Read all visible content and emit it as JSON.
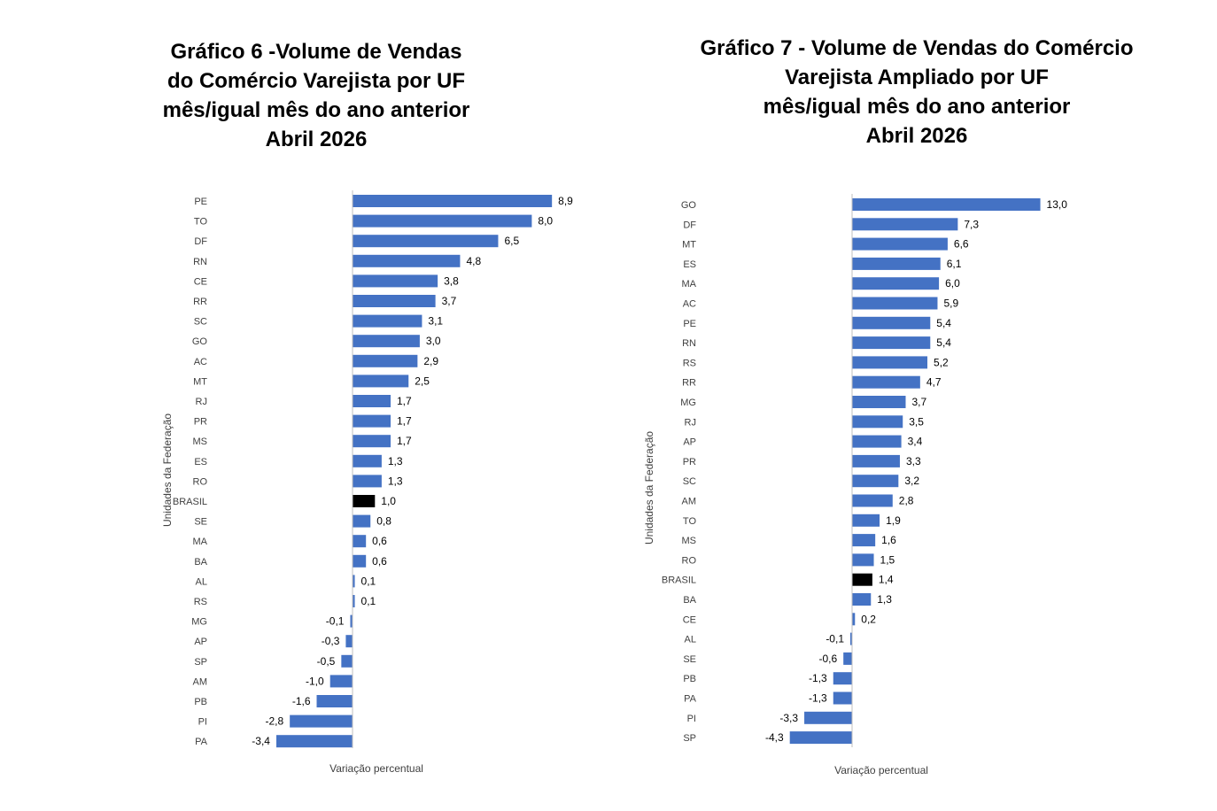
{
  "chart_data": [
    {
      "type": "bar",
      "orientation": "horizontal",
      "title_lines": [
        "Gráfico 6 -Volume de Vendas",
        "do Comércio Varejista por UF",
        "mês/igual mês do ano anterior",
        "Abril 2026"
      ],
      "xlabel": "Variação percentual",
      "ylabel": "Unidades da Federação",
      "grid": false,
      "legend": "none",
      "bar_color": "#4472c4",
      "highlight_color": "#000000",
      "highlight_category": "BRASIL",
      "categories": [
        "PE",
        "TO",
        "DF",
        "RN",
        "CE",
        "RR",
        "SC",
        "GO",
        "AC",
        "MT",
        "RJ",
        "PR",
        "MS",
        "ES",
        "RO",
        "BRASIL",
        "SE",
        "MA",
        "BA",
        "AL",
        "RS",
        "MG",
        "AP",
        "SP",
        "AM",
        "PB",
        "PI",
        "PA"
      ],
      "values": [
        8.9,
        8.0,
        6.5,
        4.8,
        3.8,
        3.7,
        3.1,
        3.0,
        2.9,
        2.5,
        1.7,
        1.7,
        1.7,
        1.3,
        1.3,
        1.0,
        0.8,
        0.6,
        0.6,
        0.1,
        0.1,
        -0.1,
        -0.3,
        -0.5,
        -1.0,
        -1.6,
        -2.8,
        -3.4
      ],
      "labels": [
        "8,9",
        "8,0",
        "6,5",
        "4,8",
        "3,8",
        "3,7",
        "3,1",
        "3,0",
        "2,9",
        "2,5",
        "1,7",
        "1,7",
        "1,7",
        "1,3",
        "1,3",
        "1,0",
        "0,8",
        "0,6",
        "0,6",
        "0,1",
        "0,1",
        "-0,1",
        "-0,3",
        "-0,5",
        "-1,0",
        "-1,6",
        "-2,8",
        "-3,4"
      ]
    },
    {
      "type": "bar",
      "orientation": "horizontal",
      "title_lines": [
        "Gráfico 7 - Volume de Vendas do Comércio",
        "Varejista Ampliado por UF",
        "mês/igual mês do ano anterior",
        "Abril 2026"
      ],
      "xlabel": "Variação percentual",
      "ylabel": "Unidades da Federação",
      "grid": false,
      "legend": "none",
      "bar_color": "#4472c4",
      "highlight_color": "#000000",
      "highlight_category": "BRASIL",
      "categories": [
        "GO",
        "DF",
        "MT",
        "ES",
        "MA",
        "AC",
        "PE",
        "RN",
        "RS",
        "RR",
        "MG",
        "RJ",
        "AP",
        "PR",
        "SC",
        "AM",
        "TO",
        "MS",
        "RO",
        "BRASIL",
        "BA",
        "CE",
        "AL",
        "SE",
        "PB",
        "PA",
        "PI",
        "SP"
      ],
      "values": [
        13.0,
        7.3,
        6.6,
        6.1,
        6.0,
        5.9,
        5.4,
        5.4,
        5.2,
        4.7,
        3.7,
        3.5,
        3.4,
        3.3,
        3.2,
        2.8,
        1.9,
        1.6,
        1.5,
        1.4,
        1.3,
        0.2,
        -0.1,
        -0.6,
        -1.3,
        -1.3,
        -3.3,
        -4.3
      ],
      "labels": [
        "13,0",
        "7,3",
        "6,6",
        "6,1",
        "6,0",
        "5,9",
        "5,4",
        "5,4",
        "5,2",
        "4,7",
        "3,7",
        "3,5",
        "3,4",
        "3,3",
        "3,2",
        "2,8",
        "1,9",
        "1,6",
        "1,5",
        "1,4",
        "1,3",
        "0,2",
        "-0,1",
        "-0,6",
        "-1,3",
        "-1,3",
        "-3,3",
        "-4,3"
      ]
    }
  ]
}
